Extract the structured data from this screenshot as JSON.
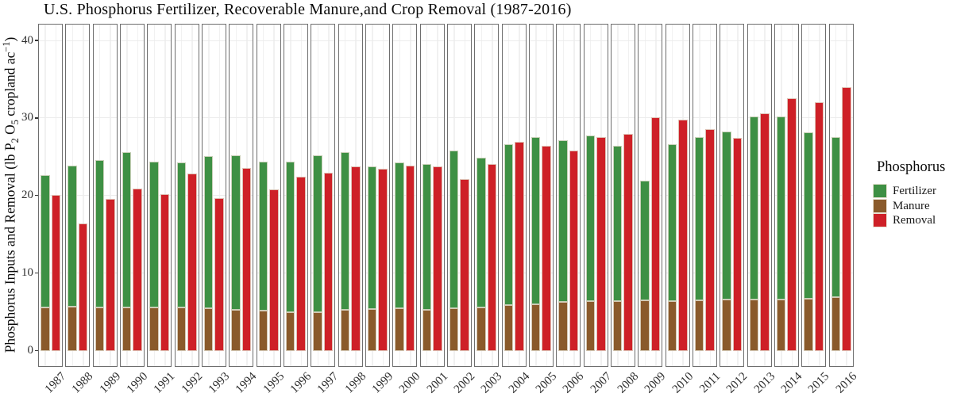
{
  "title": "U.S. Phosphorus Fertilizer, Recoverable Manure,and Crop Removal (1987-2016)",
  "y_axis": {
    "label_parts": {
      "p1": "Phosphorus Inputs and Removal (lb P",
      "sub1": "2",
      "p2": " O",
      "sub2": "5",
      "p3": " cropland ac",
      "sup1": "−1",
      "p4": ")"
    },
    "ticks": [
      "0",
      "10",
      "20",
      "30",
      "40"
    ]
  },
  "legend": {
    "title": "Phosphorus",
    "items": [
      {
        "label": "Fertilizer",
        "color": "#3e9044"
      },
      {
        "label": "Manure",
        "color": "#8a5a2b"
      },
      {
        "label": "Removal",
        "color": "#ce2027"
      }
    ]
  },
  "colors": {
    "fertilizer": "#3e9044",
    "manure": "#8a5a2b",
    "removal": "#ce2027",
    "panel_border": "#6e6e6e"
  },
  "chart_data": {
    "type": "bar",
    "title": "U.S. Phosphorus Fertilizer, Recoverable Manure,and Crop Removal (1987-2016)",
    "ylabel": "Phosphorus Inputs and Removal (lb P2O5 cropland ac-1)",
    "ylim": [
      0,
      40
    ],
    "yticks": [
      0,
      10,
      20,
      30,
      40
    ],
    "legend_position": "right",
    "grid": true,
    "facets": "one bordered panel per year; Fertilizer stacked on Manure in left bar, Removal as right bar",
    "categories": [
      "1987",
      "1988",
      "1989",
      "1990",
      "1991",
      "1992",
      "1993",
      "1994",
      "1995",
      "1996",
      "1997",
      "1998",
      "1999",
      "2000",
      "2001",
      "2002",
      "2003",
      "2004",
      "2005",
      "2006",
      "2007",
      "2008",
      "2009",
      "2010",
      "2011",
      "2012",
      "2013",
      "2014",
      "2015",
      "2016"
    ],
    "series": [
      {
        "name": "Fertilizer",
        "color": "#3e9044",
        "stack": "inputs",
        "values": [
          17.1,
          18.2,
          19.0,
          20.0,
          18.8,
          18.7,
          19.6,
          19.9,
          19.2,
          19.4,
          20.2,
          20.3,
          18.4,
          18.8,
          18.8,
          20.4,
          19.3,
          20.8,
          21.6,
          20.9,
          21.4,
          20.1,
          15.5,
          20.3,
          21.1,
          21.7,
          23.6,
          23.6,
          21.5,
          20.7
        ]
      },
      {
        "name": "Manure",
        "color": "#8a5a2b",
        "stack": "inputs",
        "values": [
          5.6,
          5.7,
          5.6,
          5.6,
          5.6,
          5.6,
          5.5,
          5.3,
          5.2,
          5.0,
          5.0,
          5.3,
          5.4,
          5.5,
          5.3,
          5.5,
          5.6,
          5.9,
          6.0,
          6.3,
          6.4,
          6.4,
          6.5,
          6.4,
          6.5,
          6.6,
          6.6,
          6.6,
          6.7,
          6.9
        ]
      },
      {
        "name": "Removal",
        "color": "#ce2027",
        "stack": "removal",
        "values": [
          20.1,
          16.4,
          19.6,
          20.9,
          20.2,
          22.9,
          19.7,
          23.6,
          20.8,
          22.5,
          23.0,
          23.8,
          23.5,
          23.9,
          23.8,
          22.2,
          24.1,
          27.0,
          26.5,
          25.9,
          27.6,
          28.0,
          30.1,
          29.8,
          28.6,
          27.5,
          30.7,
          32.6,
          32.1,
          34.0
        ]
      }
    ]
  }
}
